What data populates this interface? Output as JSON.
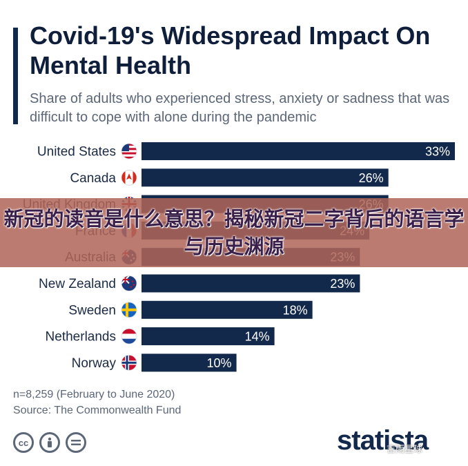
{
  "header": {
    "title": "Covid-19's Widespread Impact On Mental Health",
    "subtitle": "Share of adults who experienced stress, anxiety or sadness that was difficult to cope with alone during the pandemic"
  },
  "overlay": {
    "banner_text": "新冠的读音是什么意思？揭秘新冠二字背后的语言学与历史渊源"
  },
  "chart_data": {
    "type": "bar",
    "orientation": "horizontal",
    "categories": [
      "United States",
      "Canada",
      "United Kingdom",
      "France",
      "Australia",
      "New Zealand",
      "Sweden",
      "Netherlands",
      "Norway"
    ],
    "values": [
      33,
      26,
      26,
      24,
      23,
      23,
      18,
      14,
      10
    ],
    "value_labels": [
      "33%",
      "26%",
      "26%",
      "24%",
      "23%",
      "23%",
      "18%",
      "14%",
      "10%"
    ],
    "flag_icons": [
      "us-flag-icon",
      "canada-flag-icon",
      "uk-flag-icon",
      "france-flag-icon",
      "australia-flag-icon",
      "new-zealand-flag-icon",
      "sweden-flag-icon",
      "netherlands-flag-icon",
      "norway-flag-icon"
    ],
    "xlim": [
      0,
      33
    ],
    "bar_color": "#13294b",
    "label_color": "#ffffff",
    "grid": false,
    "legend": "none"
  },
  "footer": {
    "note": "n=8,259 (February to June 2020)",
    "source": "Source: The Commonwealth Fund",
    "license_icons": [
      "cc-icon",
      "person-icon",
      "equals-icon"
    ],
    "brand": "statista",
    "watermark": "吉雨星球"
  }
}
